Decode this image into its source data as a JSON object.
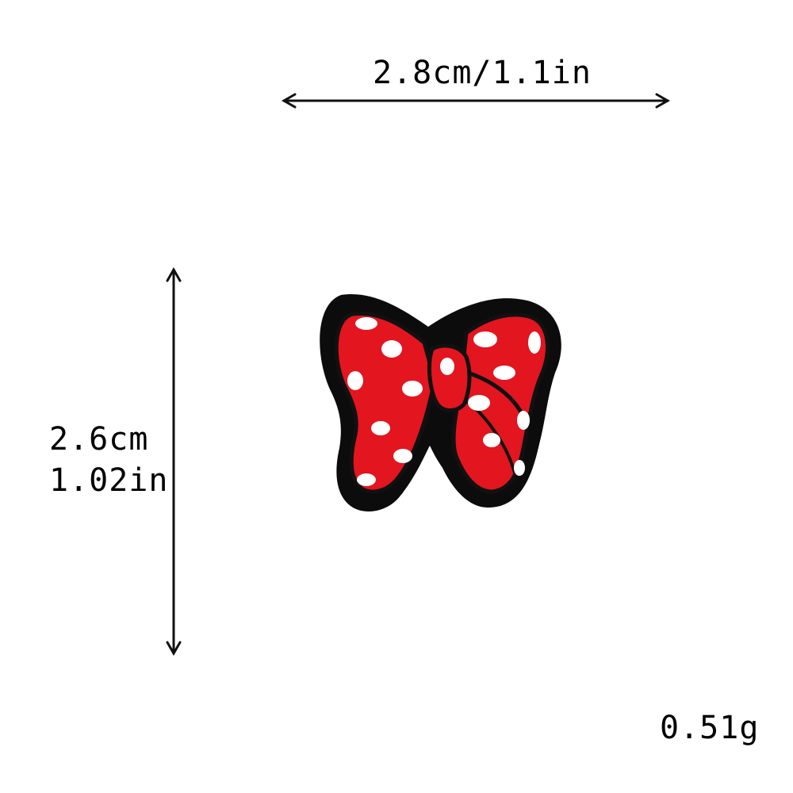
{
  "dimensions": {
    "width_label": "2.8cm/1.1in",
    "height_label_line1": "2.6cm",
    "height_label_line2": "1.02in"
  },
  "weight": {
    "label": "0.51g"
  },
  "product": {
    "icon": "bow-patch-icon",
    "colors": {
      "border": "#0c0c0c",
      "fill": "#e3151f",
      "dots": "#ffffff"
    }
  }
}
